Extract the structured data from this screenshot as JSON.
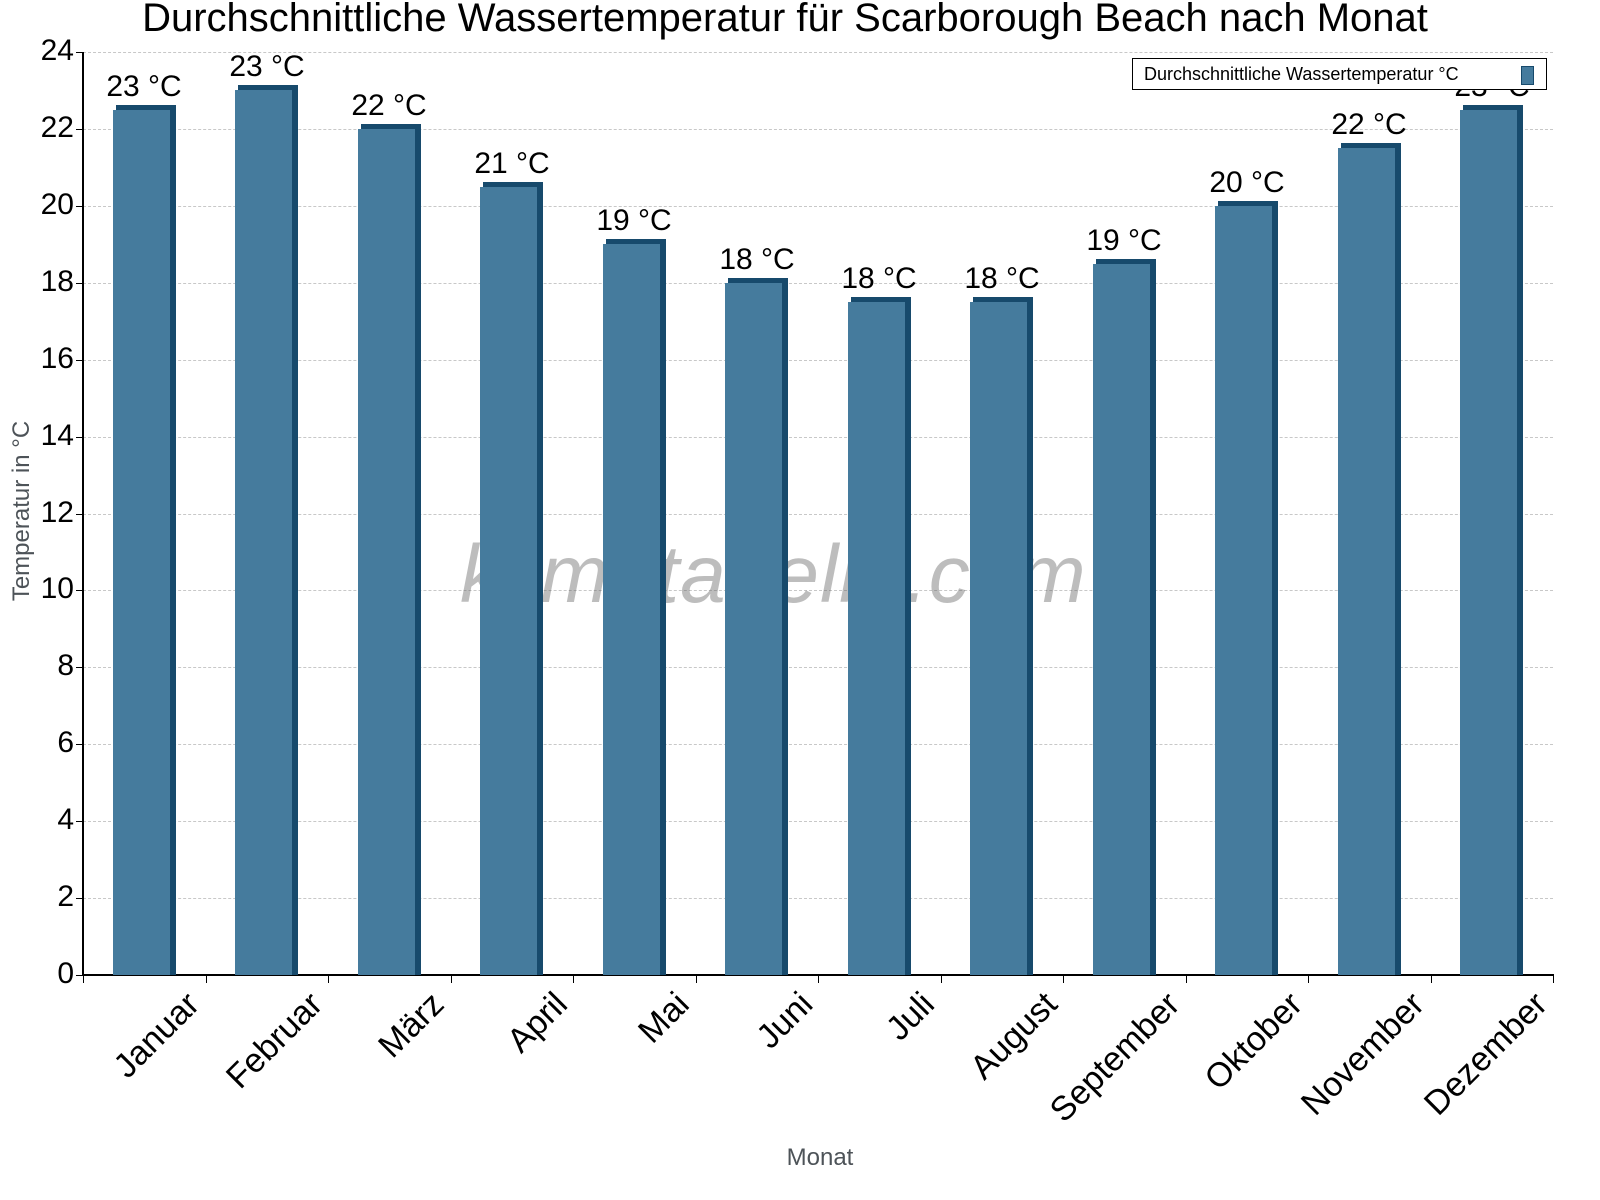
{
  "chart_data": {
    "type": "bar",
    "title": "Durchschnittliche Wassertemperatur für Scarborough Beach nach Monat",
    "xlabel": "Monat",
    "ylabel": "Temperatur in °C",
    "categories": [
      "Januar",
      "Februar",
      "März",
      "April",
      "Mai",
      "Juni",
      "Juli",
      "August",
      "September",
      "Oktober",
      "November",
      "Dezember"
    ],
    "series": [
      {
        "name": "Durchschnittliche Wassertemperatur °C",
        "values": [
          22.5,
          23,
          22,
          20.5,
          19,
          18,
          17.5,
          17.5,
          18.5,
          20,
          21.5,
          22.5
        ]
      }
    ],
    "data_labels": [
      "23 °C",
      "23 °C",
      "22 °C",
      "21 °C",
      "19 °C",
      "18 °C",
      "18 °C",
      "18 °C",
      "19 °C",
      "20 °C",
      "22 °C",
      "23 °C"
    ],
    "ylim": [
      0,
      24
    ],
    "yticks": [
      0,
      2,
      4,
      6,
      8,
      10,
      12,
      14,
      16,
      18,
      20,
      22,
      24
    ],
    "grid": true,
    "legend_position": "top-right",
    "colors": {
      "bar": "#457b9d",
      "bar_shadow": "#174a6c"
    },
    "watermark": "klimatabelle.com"
  }
}
